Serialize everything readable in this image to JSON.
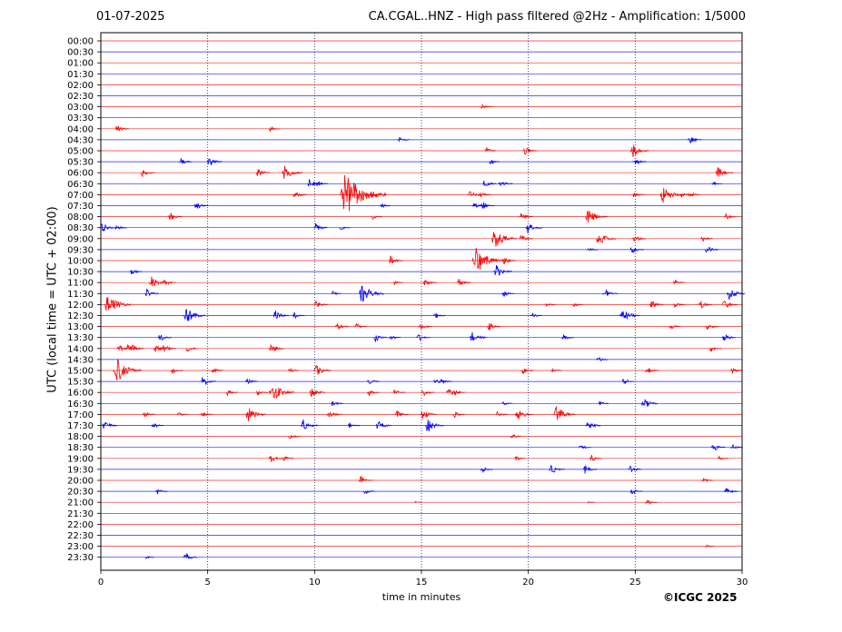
{
  "header": {
    "date": "01-07-2025",
    "title": "CA.CGAL..HNZ - High pass filtered @2Hz - Amplification: 1/5000"
  },
  "footer": {
    "copyright": "©ICGC 2025"
  },
  "chart_data": {
    "type": "helicorder",
    "title": "CA.CGAL..HNZ - High pass filtered @2Hz - Amplification: 1/5000",
    "xlabel": "time in minutes",
    "ylabel": "UTC (local time = UTC + 02:00)",
    "xlim": [
      0,
      30
    ],
    "xticks": [
      0,
      5,
      10,
      15,
      20,
      25,
      30
    ],
    "grid": "vertical dotted lines every 5 minutes",
    "trace_colors": [
      "#ff0000",
      "#0000ff"
    ],
    "rows": [
      "00:00",
      "00:30",
      "01:00",
      "01:30",
      "02:00",
      "02:30",
      "03:00",
      "03:30",
      "04:00",
      "04:30",
      "05:00",
      "05:30",
      "06:00",
      "06:30",
      "07:00",
      "07:30",
      "08:00",
      "08:30",
      "09:00",
      "09:30",
      "10:00",
      "10:30",
      "11:00",
      "11:30",
      "12:00",
      "12:30",
      "13:00",
      "13:30",
      "14:00",
      "14:30",
      "15:00",
      "15:30",
      "16:00",
      "16:30",
      "17:00",
      "17:30",
      "18:00",
      "18:30",
      "19:00",
      "19:30",
      "20:00",
      "20:30",
      "21:00",
      "21:30",
      "22:00",
      "22:30",
      "23:00",
      "23:30"
    ],
    "events": [
      {
        "row": "03:00",
        "minute": 17.9,
        "amplitude": 0.4
      },
      {
        "row": "04:00",
        "minute": 0.8,
        "amplitude": 0.5
      },
      {
        "row": "04:00",
        "minute": 8.0,
        "amplitude": 0.35
      },
      {
        "row": "04:30",
        "minute": 14.0,
        "amplitude": 0.4
      },
      {
        "row": "04:30",
        "minute": 27.6,
        "amplitude": 0.5
      },
      {
        "row": "05:00",
        "minute": 18.1,
        "amplitude": 0.35
      },
      {
        "row": "05:00",
        "minute": 19.9,
        "amplitude": 0.5
      },
      {
        "row": "05:00",
        "minute": 24.9,
        "amplitude": 0.8
      },
      {
        "row": "05:30",
        "minute": 3.8,
        "amplitude": 0.4
      },
      {
        "row": "05:30",
        "minute": 5.1,
        "amplitude": 0.6
      },
      {
        "row": "05:30",
        "minute": 18.3,
        "amplitude": 0.3
      },
      {
        "row": "05:30",
        "minute": 25.0,
        "amplitude": 0.5
      },
      {
        "row": "06:00",
        "minute": 2.0,
        "amplitude": 0.5
      },
      {
        "row": "06:00",
        "minute": 7.4,
        "amplitude": 0.5
      },
      {
        "row": "06:00",
        "minute": 8.6,
        "amplitude": 0.9
      },
      {
        "row": "06:00",
        "minute": 28.9,
        "amplitude": 0.7
      },
      {
        "row": "06:30",
        "minute": 9.8,
        "amplitude": 0.6
      },
      {
        "row": "06:30",
        "minute": 10.2,
        "amplitude": 0.4
      },
      {
        "row": "06:30",
        "minute": 18.0,
        "amplitude": 0.5
      },
      {
        "row": "06:30",
        "minute": 18.7,
        "amplitude": 0.6
      },
      {
        "row": "06:30",
        "minute": 28.7,
        "amplitude": 0.3
      },
      {
        "row": "07:00",
        "minute": 9.1,
        "amplitude": 0.5
      },
      {
        "row": "07:00",
        "minute": 11.3,
        "amplitude": 2.5
      },
      {
        "row": "07:00",
        "minute": 12.6,
        "amplitude": 0.4
      },
      {
        "row": "07:00",
        "minute": 17.3,
        "amplitude": 0.5
      },
      {
        "row": "07:00",
        "minute": 17.8,
        "amplitude": 0.4
      },
      {
        "row": "07:00",
        "minute": 25.0,
        "amplitude": 0.4
      },
      {
        "row": "07:00",
        "minute": 26.3,
        "amplitude": 1.0
      },
      {
        "row": "07:00",
        "minute": 27.2,
        "amplitude": 0.4
      },
      {
        "row": "07:00",
        "minute": 27.6,
        "amplitude": 0.4
      },
      {
        "row": "07:30",
        "minute": 4.5,
        "amplitude": 0.5
      },
      {
        "row": "07:30",
        "minute": 13.2,
        "amplitude": 0.3
      },
      {
        "row": "07:30",
        "minute": 17.5,
        "amplitude": 0.4
      },
      {
        "row": "07:30",
        "minute": 17.9,
        "amplitude": 0.5
      },
      {
        "row": "08:00",
        "minute": 3.3,
        "amplitude": 0.5
      },
      {
        "row": "08:00",
        "minute": 12.8,
        "amplitude": 0.3
      },
      {
        "row": "08:00",
        "minute": 19.7,
        "amplitude": 0.5
      },
      {
        "row": "08:00",
        "minute": 22.8,
        "amplitude": 1.0
      },
      {
        "row": "08:00",
        "minute": 29.3,
        "amplitude": 0.4
      },
      {
        "row": "08:30",
        "minute": 0.1,
        "amplitude": 0.6
      },
      {
        "row": "08:30",
        "minute": 0.8,
        "amplitude": 0.4
      },
      {
        "row": "08:30",
        "minute": 10.1,
        "amplitude": 0.5
      },
      {
        "row": "08:30",
        "minute": 11.3,
        "amplitude": 0.3
      },
      {
        "row": "08:30",
        "minute": 20.0,
        "amplitude": 0.7
      },
      {
        "row": "09:00",
        "minute": 18.4,
        "amplitude": 1.2
      },
      {
        "row": "09:00",
        "minute": 19.7,
        "amplitude": 0.5
      },
      {
        "row": "09:00",
        "minute": 23.3,
        "amplitude": 0.9
      },
      {
        "row": "09:00",
        "minute": 25.0,
        "amplitude": 0.5
      },
      {
        "row": "09:00",
        "minute": 28.2,
        "amplitude": 0.4
      },
      {
        "row": "09:30",
        "minute": 22.9,
        "amplitude": 0.3
      },
      {
        "row": "09:30",
        "minute": 24.9,
        "amplitude": 0.5
      },
      {
        "row": "09:30",
        "minute": 28.4,
        "amplitude": 0.5
      },
      {
        "row": "10:00",
        "minute": 13.6,
        "amplitude": 0.5
      },
      {
        "row": "10:00",
        "minute": 17.5,
        "amplitude": 1.6
      },
      {
        "row": "10:00",
        "minute": 18.9,
        "amplitude": 0.5
      },
      {
        "row": "10:30",
        "minute": 1.5,
        "amplitude": 0.4
      },
      {
        "row": "10:30",
        "minute": 18.5,
        "amplitude": 0.8
      },
      {
        "row": "11:00",
        "minute": 2.4,
        "amplitude": 0.7
      },
      {
        "row": "11:00",
        "minute": 3.0,
        "amplitude": 0.5
      },
      {
        "row": "11:00",
        "minute": 13.8,
        "amplitude": 0.3
      },
      {
        "row": "11:00",
        "minute": 15.2,
        "amplitude": 0.5
      },
      {
        "row": "11:00",
        "minute": 16.8,
        "amplitude": 0.5
      },
      {
        "row": "11:00",
        "minute": 26.9,
        "amplitude": 0.4
      },
      {
        "row": "11:30",
        "minute": 2.2,
        "amplitude": 0.5
      },
      {
        "row": "11:30",
        "minute": 10.9,
        "amplitude": 0.3
      },
      {
        "row": "11:30",
        "minute": 12.2,
        "amplitude": 1.2
      },
      {
        "row": "11:30",
        "minute": 18.9,
        "amplitude": 0.4
      },
      {
        "row": "11:30",
        "minute": 23.6,
        "amplitude": 0.6
      },
      {
        "row": "11:30",
        "minute": 29.4,
        "amplitude": 0.8
      },
      {
        "row": "12:00",
        "minute": 0.3,
        "amplitude": 1.3
      },
      {
        "row": "12:00",
        "minute": 10.1,
        "amplitude": 0.5
      },
      {
        "row": "12:00",
        "minute": 20.9,
        "amplitude": 0.3
      },
      {
        "row": "12:00",
        "minute": 22.2,
        "amplitude": 0.3
      },
      {
        "row": "12:00",
        "minute": 25.8,
        "amplitude": 0.5
      },
      {
        "row": "12:00",
        "minute": 26.9,
        "amplitude": 0.4
      },
      {
        "row": "12:00",
        "minute": 28.1,
        "amplitude": 0.5
      },
      {
        "row": "12:00",
        "minute": 29.2,
        "amplitude": 0.6
      },
      {
        "row": "12:30",
        "minute": 4.0,
        "amplitude": 1.0
      },
      {
        "row": "12:30",
        "minute": 8.2,
        "amplitude": 0.6
      },
      {
        "row": "12:30",
        "minute": 9.1,
        "amplitude": 0.4
      },
      {
        "row": "12:30",
        "minute": 15.7,
        "amplitude": 0.4
      },
      {
        "row": "12:30",
        "minute": 20.2,
        "amplitude": 0.4
      },
      {
        "row": "12:30",
        "minute": 24.4,
        "amplitude": 0.9
      },
      {
        "row": "13:00",
        "minute": 11.1,
        "amplitude": 0.5
      },
      {
        "row": "13:00",
        "minute": 12.0,
        "amplitude": 0.4
      },
      {
        "row": "13:00",
        "minute": 15.0,
        "amplitude": 0.5
      },
      {
        "row": "13:00",
        "minute": 18.2,
        "amplitude": 0.5
      },
      {
        "row": "13:00",
        "minute": 26.7,
        "amplitude": 0.4
      },
      {
        "row": "13:00",
        "minute": 28.4,
        "amplitude": 0.5
      },
      {
        "row": "13:30",
        "minute": 2.8,
        "amplitude": 0.5
      },
      {
        "row": "13:30",
        "minute": 12.9,
        "amplitude": 0.5
      },
      {
        "row": "13:30",
        "minute": 13.6,
        "amplitude": 0.4
      },
      {
        "row": "13:30",
        "minute": 14.9,
        "amplitude": 0.5
      },
      {
        "row": "13:30",
        "minute": 17.4,
        "amplitude": 0.7
      },
      {
        "row": "13:30",
        "minute": 21.7,
        "amplitude": 0.4
      },
      {
        "row": "13:30",
        "minute": 29.2,
        "amplitude": 0.5
      },
      {
        "row": "14:00",
        "minute": 0.9,
        "amplitude": 0.5
      },
      {
        "row": "14:00",
        "minute": 1.3,
        "amplitude": 0.6
      },
      {
        "row": "14:00",
        "minute": 1.5,
        "amplitude": 0.5
      },
      {
        "row": "14:00",
        "minute": 2.6,
        "amplitude": 0.5
      },
      {
        "row": "14:00",
        "minute": 3.0,
        "amplitude": 0.5
      },
      {
        "row": "14:00",
        "minute": 4.1,
        "amplitude": 0.4
      },
      {
        "row": "14:00",
        "minute": 8.0,
        "amplitude": 0.6
      },
      {
        "row": "14:00",
        "minute": 28.6,
        "amplitude": 0.4
      },
      {
        "row": "14:30",
        "minute": 23.3,
        "amplitude": 0.4
      },
      {
        "row": "15:00",
        "minute": 0.7,
        "amplitude": 1.4
      },
      {
        "row": "15:00",
        "minute": 3.4,
        "amplitude": 0.4
      },
      {
        "row": "15:00",
        "minute": 5.3,
        "amplitude": 0.4
      },
      {
        "row": "15:00",
        "minute": 8.9,
        "amplitude": 0.3
      },
      {
        "row": "15:00",
        "minute": 10.1,
        "amplitude": 0.7
      },
      {
        "row": "15:00",
        "minute": 19.8,
        "amplitude": 0.4
      },
      {
        "row": "15:00",
        "minute": 21.2,
        "amplitude": 0.3
      },
      {
        "row": "15:00",
        "minute": 25.6,
        "amplitude": 0.5
      },
      {
        "row": "15:00",
        "minute": 29.6,
        "amplitude": 0.4
      },
      {
        "row": "15:30",
        "minute": 4.8,
        "amplitude": 0.6
      },
      {
        "row": "15:30",
        "minute": 6.9,
        "amplitude": 0.4
      },
      {
        "row": "15:30",
        "minute": 12.6,
        "amplitude": 0.4
      },
      {
        "row": "15:30",
        "minute": 15.7,
        "amplitude": 0.4
      },
      {
        "row": "15:30",
        "minute": 16.0,
        "amplitude": 0.4
      },
      {
        "row": "15:30",
        "minute": 24.5,
        "amplitude": 0.4
      },
      {
        "row": "16:00",
        "minute": 6.0,
        "amplitude": 0.4
      },
      {
        "row": "16:00",
        "minute": 7.4,
        "amplitude": 0.4
      },
      {
        "row": "16:00",
        "minute": 8.0,
        "amplitude": 1.2
      },
      {
        "row": "16:00",
        "minute": 9.9,
        "amplitude": 0.6
      },
      {
        "row": "16:00",
        "minute": 12.6,
        "amplitude": 0.4
      },
      {
        "row": "16:00",
        "minute": 13.8,
        "amplitude": 0.4
      },
      {
        "row": "16:00",
        "minute": 15.1,
        "amplitude": 0.5
      },
      {
        "row": "16:00",
        "minute": 16.3,
        "amplitude": 0.6
      },
      {
        "row": "16:00",
        "minute": 16.6,
        "amplitude": 0.4
      },
      {
        "row": "16:30",
        "minute": 10.9,
        "amplitude": 0.4
      },
      {
        "row": "16:30",
        "minute": 18.9,
        "amplitude": 0.3
      },
      {
        "row": "16:30",
        "minute": 23.4,
        "amplitude": 0.3
      },
      {
        "row": "16:30",
        "minute": 25.4,
        "amplitude": 0.7
      },
      {
        "row": "17:00",
        "minute": 2.1,
        "amplitude": 0.4
      },
      {
        "row": "17:00",
        "minute": 3.7,
        "amplitude": 0.3
      },
      {
        "row": "17:00",
        "minute": 4.8,
        "amplitude": 0.4
      },
      {
        "row": "17:00",
        "minute": 6.9,
        "amplitude": 0.9
      },
      {
        "row": "17:00",
        "minute": 10.7,
        "amplitude": 0.6
      },
      {
        "row": "17:00",
        "minute": 13.9,
        "amplitude": 0.5
      },
      {
        "row": "17:00",
        "minute": 15.1,
        "amplitude": 0.6
      },
      {
        "row": "17:00",
        "minute": 16.6,
        "amplitude": 0.4
      },
      {
        "row": "17:00",
        "minute": 18.6,
        "amplitude": 0.4
      },
      {
        "row": "17:00",
        "minute": 19.5,
        "amplitude": 0.8
      },
      {
        "row": "17:00",
        "minute": 21.3,
        "amplitude": 1.0
      },
      {
        "row": "17:30",
        "minute": 0.2,
        "amplitude": 0.6
      },
      {
        "row": "17:30",
        "minute": 2.5,
        "amplitude": 0.4
      },
      {
        "row": "17:30",
        "minute": 9.5,
        "amplitude": 0.7
      },
      {
        "row": "17:30",
        "minute": 11.7,
        "amplitude": 0.4
      },
      {
        "row": "17:30",
        "minute": 13.0,
        "amplitude": 0.6
      },
      {
        "row": "17:30",
        "minute": 15.3,
        "amplitude": 0.8
      },
      {
        "row": "17:30",
        "minute": 22.8,
        "amplitude": 0.6
      },
      {
        "row": "18:00",
        "minute": 8.9,
        "amplitude": 0.4
      },
      {
        "row": "18:00",
        "minute": 19.3,
        "amplitude": 0.3
      },
      {
        "row": "18:30",
        "minute": 22.5,
        "amplitude": 0.4
      },
      {
        "row": "18:30",
        "minute": 28.7,
        "amplitude": 0.5
      },
      {
        "row": "18:30",
        "minute": 29.6,
        "amplitude": 0.4
      },
      {
        "row": "19:00",
        "minute": 8.0,
        "amplitude": 0.5
      },
      {
        "row": "19:00",
        "minute": 8.6,
        "amplitude": 0.4
      },
      {
        "row": "19:00",
        "minute": 19.5,
        "amplitude": 0.3
      },
      {
        "row": "19:00",
        "minute": 23.0,
        "amplitude": 0.4
      },
      {
        "row": "19:00",
        "minute": 29.0,
        "amplitude": 0.3
      },
      {
        "row": "19:30",
        "minute": 17.9,
        "amplitude": 0.4
      },
      {
        "row": "19:30",
        "minute": 21.1,
        "amplitude": 0.6
      },
      {
        "row": "19:30",
        "minute": 22.7,
        "amplitude": 0.5
      },
      {
        "row": "19:30",
        "minute": 24.8,
        "amplitude": 0.5
      },
      {
        "row": "20:00",
        "minute": 12.2,
        "amplitude": 0.5
      },
      {
        "row": "20:00",
        "minute": 28.2,
        "amplitude": 0.4
      },
      {
        "row": "20:30",
        "minute": 2.7,
        "amplitude": 0.4
      },
      {
        "row": "20:30",
        "minute": 12.4,
        "amplitude": 0.4
      },
      {
        "row": "20:30",
        "minute": 24.9,
        "amplitude": 0.4
      },
      {
        "row": "20:30",
        "minute": 29.3,
        "amplitude": 0.5
      },
      {
        "row": "21:00",
        "minute": 14.8,
        "amplitude": 0.1
      },
      {
        "row": "21:00",
        "minute": 22.9,
        "amplitude": 0.1
      },
      {
        "row": "21:00",
        "minute": 25.6,
        "amplitude": 0.4
      },
      {
        "row": "23:00",
        "minute": 28.4,
        "amplitude": 0.2
      },
      {
        "row": "23:30",
        "minute": 2.2,
        "amplitude": 0.2
      },
      {
        "row": "23:30",
        "minute": 4.0,
        "amplitude": 0.5
      }
    ]
  }
}
